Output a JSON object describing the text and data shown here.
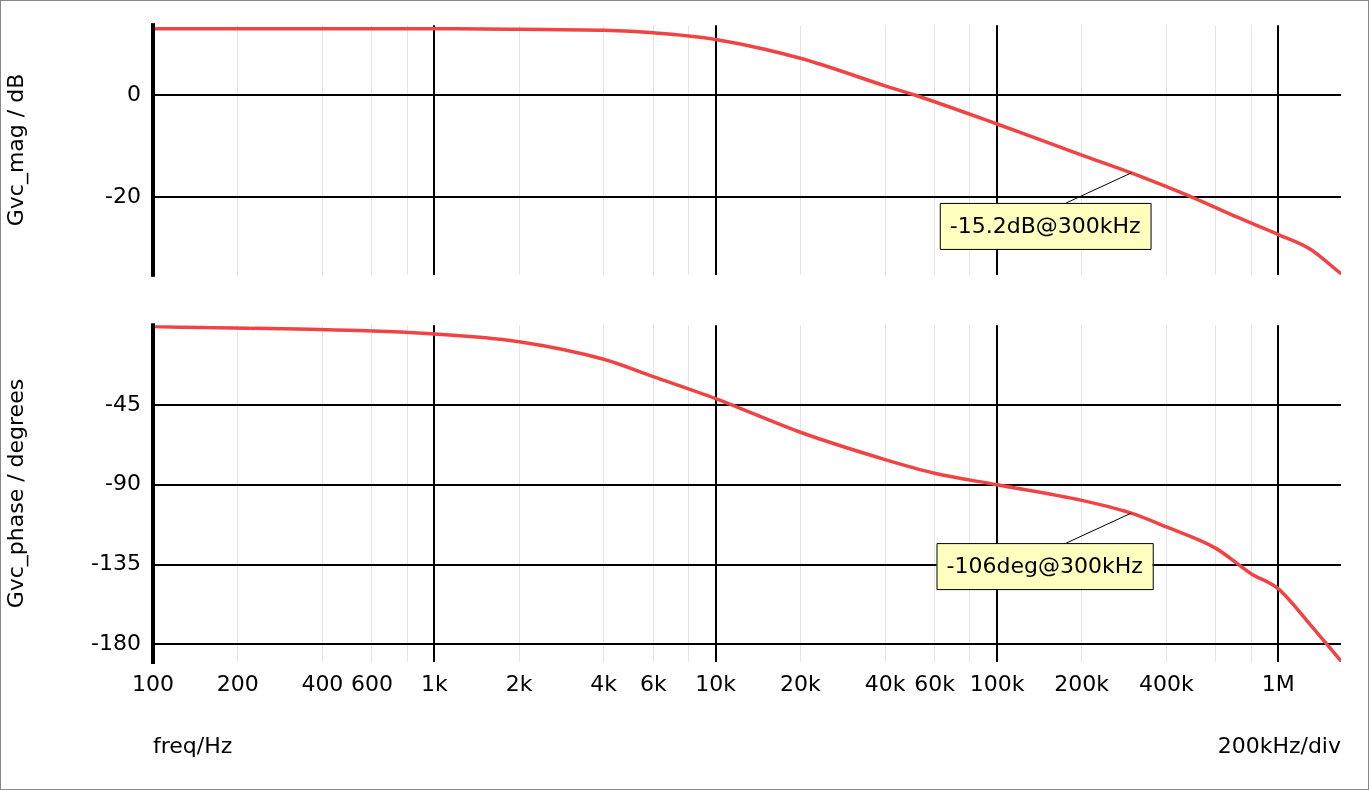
{
  "chart_data": [
    {
      "type": "line",
      "ylabel": "Gvc_mag / dB",
      "x": [
        100,
        1000,
        2000,
        4000,
        6000,
        10000,
        20000,
        40000,
        51600,
        100000,
        200000,
        300000,
        495000,
        700000,
        1000000,
        1300000,
        1670000
      ],
      "series": [
        {
          "color": "#f04444",
          "values": [
            13.1,
            13.1,
            13,
            12.8,
            12.3,
            11,
            7.3,
            1.9,
            0,
            -5.6,
            -11.7,
            -15.2,
            -20,
            -23.7,
            -27.3,
            -30.2,
            -35
          ]
        }
      ],
      "log": "x",
      "xlim": [
        100,
        1670000
      ],
      "xticks": [
        {
          "value": 100,
          "label": null
        },
        {
          "value": 200,
          "label": null
        },
        {
          "value": 400,
          "label": null
        },
        {
          "value": 600,
          "label": null
        },
        {
          "value": 800,
          "label": null
        },
        {
          "value": 1000,
          "label": null
        },
        {
          "value": 2000,
          "label": null
        },
        {
          "value": 4000,
          "label": null
        },
        {
          "value": 6000,
          "label": null
        },
        {
          "value": 8000,
          "label": null
        },
        {
          "value": 10000,
          "label": null
        },
        {
          "value": 20000,
          "label": null
        },
        {
          "value": 40000,
          "label": null
        },
        {
          "value": 60000,
          "label": null
        },
        {
          "value": 80000,
          "label": null
        },
        {
          "value": 100000,
          "label": null
        },
        {
          "value": 200000,
          "label": null
        },
        {
          "value": 400000,
          "label": null
        },
        {
          "value": 600000,
          "label": null
        },
        {
          "value": 800000,
          "label": null
        },
        {
          "value": 1000000,
          "label": null
        }
      ],
      "ylim": [
        -35.2,
        13.8
      ],
      "yticks": [
        0,
        -20
      ],
      "grid": true,
      "tick_labels": "y",
      "marker": "none",
      "line_style": "solid",
      "annotations": [
        {
          "text": "-15.2dB@300kHz",
          "x": 300000,
          "y": -15.2
        }
      ]
    },
    {
      "type": "line",
      "ylabel": "Gvc_phase / degrees",
      "xlabel": "freq/Hz",
      "x": [
        100,
        1000,
        2000,
        4000,
        6000,
        10000,
        20000,
        40000,
        60000,
        100000,
        200000,
        300000,
        400000,
        600000,
        800000,
        1000000,
        1300000,
        1670000
      ],
      "series": [
        {
          "color": "#f04444",
          "values": [
            -0.7,
            -4.9,
            -9.3,
            -19.2,
            -29,
            -41.4,
            -60.4,
            -75.8,
            -83.5,
            -90,
            -98.8,
            -106,
            -113.8,
            -125.9,
            -140.2,
            -148.7,
            -169,
            -189.5
          ]
        }
      ],
      "log": "x",
      "xlim": [
        100,
        1670000
      ],
      "xticks": [
        100,
        200,
        400,
        600,
        {
          "value": 800,
          "label": null
        },
        {
          "value": 1000,
          "label": "1k"
        },
        {
          "value": 2000,
          "label": "2k"
        },
        {
          "value": 4000,
          "label": "4k"
        },
        {
          "value": 6000,
          "label": "6k"
        },
        {
          "value": 8000,
          "label": null
        },
        {
          "value": 10000,
          "label": "10k"
        },
        {
          "value": 20000,
          "label": "20k"
        },
        {
          "value": 40000,
          "label": "40k"
        },
        {
          "value": 60000,
          "label": "60k"
        },
        {
          "value": 80000,
          "label": null
        },
        {
          "value": 100000,
          "label": "100k"
        },
        {
          "value": 200000,
          "label": "200k"
        },
        {
          "value": 400000,
          "label": "400k"
        },
        {
          "value": 600000,
          "label": null
        },
        {
          "value": 800000,
          "label": null
        },
        {
          "value": 1000000,
          "label": "1M"
        }
      ],
      "ylim": [
        -190,
        0
      ],
      "yticks": [
        -45,
        -90,
        -135,
        -180
      ],
      "grid": true,
      "marker": "none",
      "line_style": "solid",
      "annotations": [
        {
          "text": "-106deg@300kHz",
          "x": 300000,
          "y": -106
        },
        "200kHz/div"
      ]
    }
  ]
}
